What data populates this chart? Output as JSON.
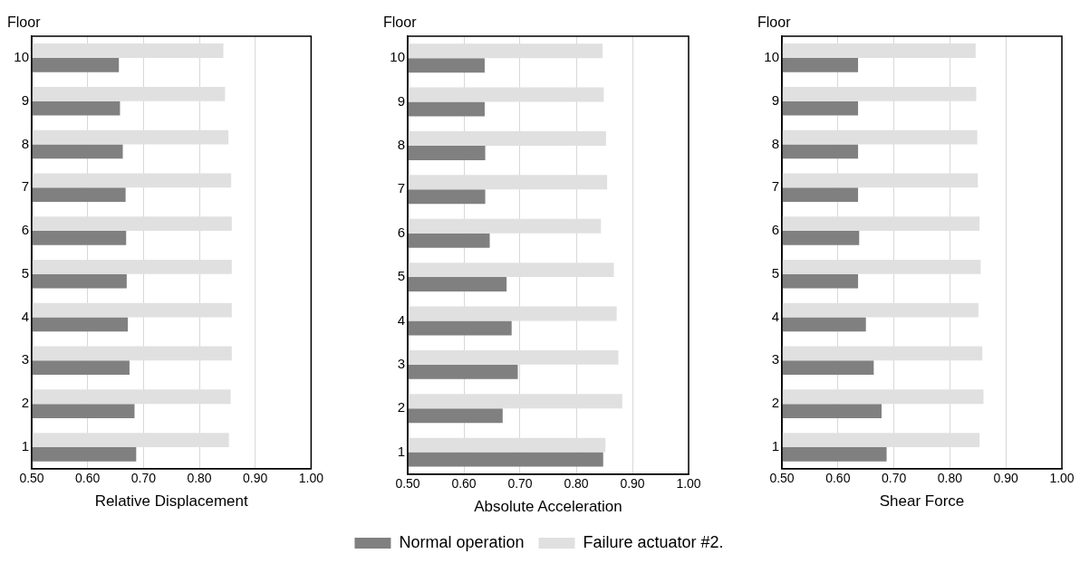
{
  "chart_data": [
    {
      "type": "bar",
      "orientation": "horizontal",
      "ylabel": "Floor",
      "xlabel": "Relative Displacement",
      "categories": [
        "10",
        "9",
        "8",
        "7",
        "6",
        "5",
        "4",
        "3",
        "2",
        "1"
      ],
      "xlim": [
        0.5,
        1.0
      ],
      "xticks": [
        {
          "value": 0.5,
          "label": "0.50"
        },
        {
          "value": 0.6,
          "label": "0.60"
        },
        {
          "value": 0.7,
          "label": "0.70"
        },
        {
          "value": 0.8,
          "label": "0.80"
        },
        {
          "value": 0.9,
          "label": "0.90"
        },
        {
          "value": 1.0,
          "label": "1.00"
        }
      ],
      "grid": "x",
      "series": [
        {
          "color": "#e0e0e0",
          "values": [
            0.843,
            0.846,
            0.852,
            0.857,
            0.858,
            0.858,
            0.858,
            0.858,
            0.856,
            0.853
          ]
        },
        {
          "color": "#808080",
          "values": [
            0.656,
            0.658,
            0.663,
            0.668,
            0.669,
            0.67,
            0.672,
            0.675,
            0.684,
            0.687
          ]
        }
      ]
    },
    {
      "type": "bar",
      "orientation": "horizontal",
      "ylabel": "Floor",
      "xlabel": "Absolute Acceleration",
      "categories": [
        "10",
        "9",
        "8",
        "7",
        "6",
        "5",
        "4",
        "3",
        "2",
        "1"
      ],
      "xlim": [
        0.5,
        1.0
      ],
      "xticks": [
        {
          "value": 0.5,
          "label": "0.50"
        },
        {
          "value": 0.6,
          "label": "0.60"
        },
        {
          "value": 0.7,
          "label": "0.70"
        },
        {
          "value": 0.8,
          "label": "0.80"
        },
        {
          "value": 0.9,
          "label": "0.90"
        },
        {
          "value": 1.0,
          "label": "1.00"
        }
      ],
      "grid": "x",
      "legend": "bottom",
      "series": [
        {
          "name": "Failure actuator #2.",
          "color": "#e0e0e0",
          "values": [
            0.847,
            0.849,
            0.853,
            0.855,
            0.844,
            0.867,
            0.872,
            0.875,
            0.882,
            0.852
          ]
        },
        {
          "name": "Normal operation",
          "color": "#808080",
          "values": [
            0.637,
            0.637,
            0.638,
            0.638,
            0.646,
            0.676,
            0.685,
            0.696,
            0.669,
            0.848
          ]
        }
      ]
    },
    {
      "type": "bar",
      "orientation": "horizontal",
      "ylabel": "Floor",
      "xlabel": "Shear Force",
      "categories": [
        "10",
        "9",
        "8",
        "7",
        "6",
        "5",
        "4",
        "3",
        "2",
        "1"
      ],
      "xlim": [
        0.5,
        1.0
      ],
      "xticks": [
        {
          "value": 0.5,
          "label": "0.50"
        },
        {
          "value": 0.6,
          "label": "0.60"
        },
        {
          "value": 0.7,
          "label": "0.70"
        },
        {
          "value": 0.8,
          "label": "0.80"
        },
        {
          "value": 0.9,
          "label": "0.90"
        },
        {
          "value": 1.0,
          "label": "1.00"
        }
      ],
      "grid": "x",
      "series": [
        {
          "color": "#e0e0e0",
          "values": [
            0.846,
            0.847,
            0.849,
            0.85,
            0.853,
            0.855,
            0.851,
            0.858,
            0.86,
            0.853
          ]
        },
        {
          "color": "#808080",
          "values": [
            0.636,
            0.636,
            0.636,
            0.636,
            0.638,
            0.636,
            0.65,
            0.664,
            0.678,
            0.687
          ]
        }
      ]
    }
  ]
}
